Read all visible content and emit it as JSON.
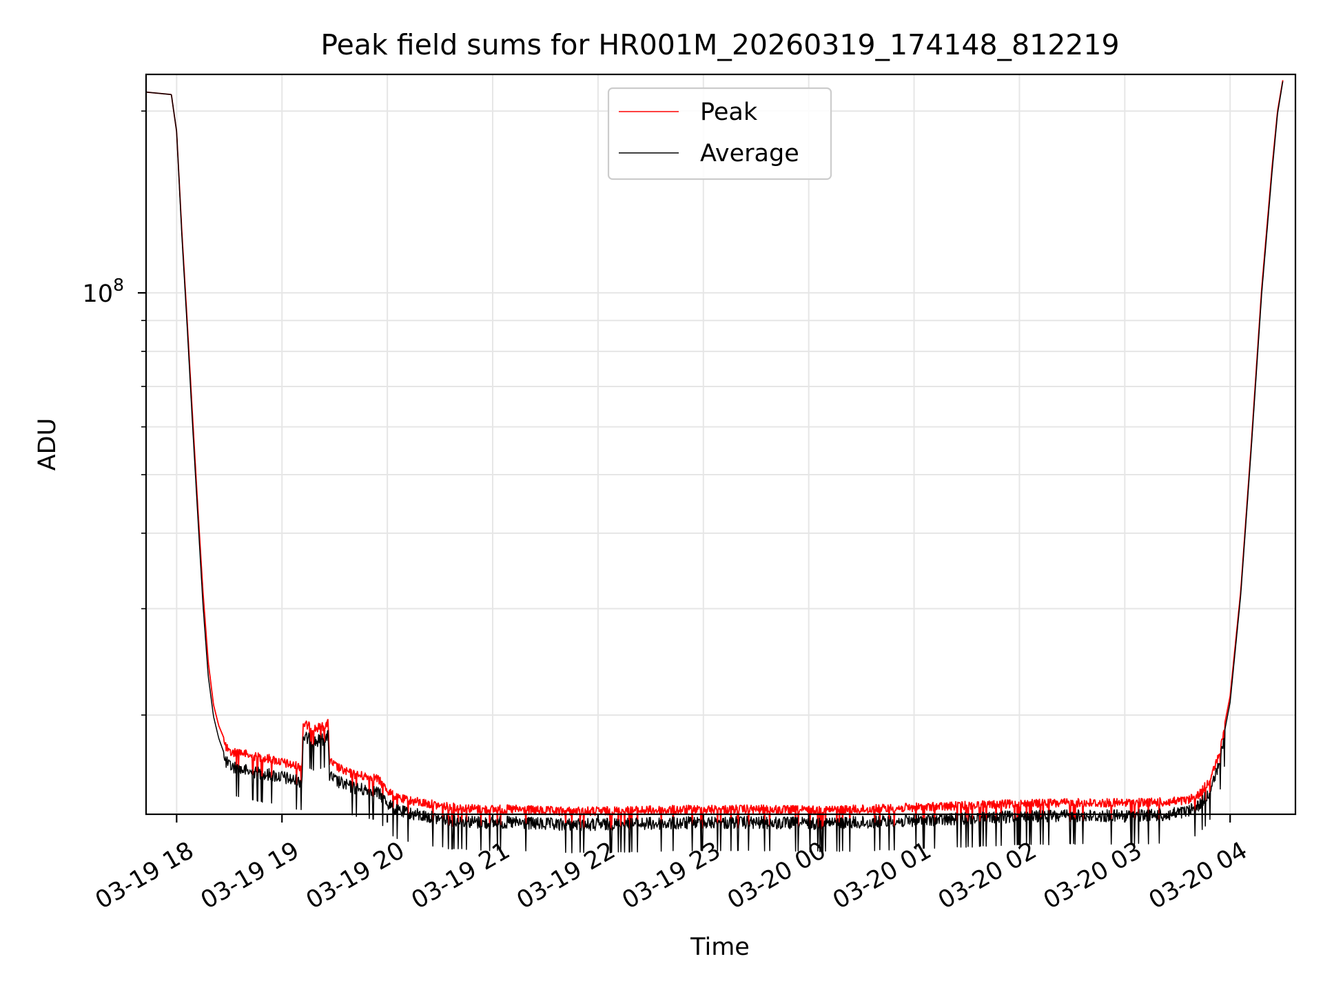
{
  "chart_data": {
    "type": "line",
    "title": "Peak field sums for HR001M_20260319_174148_812219",
    "xlabel": "Time",
    "ylabel": "ADU",
    "yscale": "log",
    "grid": true,
    "legend_position": "top-center",
    "x_unit": "hours since 03-19 17:00",
    "xlim": [
      0.71,
      11.62
    ],
    "ylim": [
      13700000.0,
      230000000.0
    ],
    "x_ticks": [
      {
        "x": 1,
        "label": "03-19 18"
      },
      {
        "x": 2,
        "label": "03-19 19"
      },
      {
        "x": 3,
        "label": "03-19 20"
      },
      {
        "x": 4,
        "label": "03-19 21"
      },
      {
        "x": 5,
        "label": "03-19 22"
      },
      {
        "x": 6,
        "label": "03-19 23"
      },
      {
        "x": 7,
        "label": "03-20 00"
      },
      {
        "x": 8,
        "label": "03-20 01"
      },
      {
        "x": 9,
        "label": "03-20 02"
      },
      {
        "x": 10,
        "label": "03-20 03"
      },
      {
        "x": 11,
        "label": "03-20 04"
      }
    ],
    "y_major_ticks": [
      {
        "value": 100000000,
        "base": "10",
        "exp": "8"
      }
    ],
    "series": [
      {
        "name": "Peak",
        "color": "#ff0000",
        "x": [
          0.71,
          0.95,
          1.0,
          1.05,
          1.1,
          1.15,
          1.2,
          1.25,
          1.3,
          1.35,
          1.4,
          1.45,
          1.5,
          1.6,
          1.7,
          1.8,
          1.9,
          2.0,
          2.1,
          2.19,
          2.2,
          2.3,
          2.4,
          2.44,
          2.45,
          2.5,
          2.6,
          2.7,
          2.8,
          2.9,
          3.0,
          3.05,
          3.1,
          3.2,
          3.3,
          3.4,
          3.5,
          3.6,
          3.7,
          3.8,
          3.9,
          4.0,
          4.2,
          4.4,
          4.6,
          4.8,
          5.0,
          5.5,
          6.0,
          6.5,
          7.0,
          7.5,
          8.0,
          8.5,
          9.0,
          9.5,
          10.0,
          10.4,
          10.6,
          10.7,
          10.8,
          10.9,
          11.0,
          11.1,
          11.2,
          11.3,
          11.4,
          11.45,
          11.5
        ],
        "y": [
          215000000,
          213000000,
          185000000,
          126000000,
          90000000,
          63000000,
          44500000,
          32000000,
          24500000,
          20800000,
          19200000,
          18300000,
          17600000,
          17700000,
          17400000,
          17300000,
          17200000,
          17000000,
          16800000,
          16700000,
          19700000,
          19300000,
          19500000,
          19700000,
          17100000,
          16800000,
          16400000,
          16200000,
          16100000,
          16000000,
          15300000,
          15000000,
          14800000,
          14700000,
          14600000,
          14500000,
          14400000,
          14300000,
          14300000,
          14250000,
          14200000,
          14200000,
          14200000,
          14150000,
          14100000,
          14100000,
          14100000,
          14150000,
          14200000,
          14200000,
          14150000,
          14200000,
          14300000,
          14400000,
          14500000,
          14550000,
          14550000,
          14600000,
          14700000,
          15000000,
          15800000,
          17500000,
          21500000,
          32000000,
          56000000,
          102000000,
          163000000,
          200000000,
          225000000
        ]
      },
      {
        "name": "Average",
        "color": "#000000",
        "x": [
          0.71,
          0.95,
          1.0,
          1.05,
          1.1,
          1.15,
          1.2,
          1.25,
          1.3,
          1.35,
          1.4,
          1.45,
          1.5,
          1.6,
          1.7,
          1.8,
          1.9,
          2.0,
          2.1,
          2.19,
          2.2,
          2.3,
          2.4,
          2.44,
          2.45,
          2.5,
          2.6,
          2.7,
          2.8,
          2.9,
          3.0,
          3.05,
          3.1,
          3.2,
          3.3,
          3.4,
          3.5,
          3.6,
          3.7,
          3.8,
          3.9,
          4.0,
          4.2,
          4.4,
          4.6,
          4.8,
          5.0,
          5.5,
          6.0,
          6.5,
          7.0,
          7.5,
          8.0,
          8.5,
          9.0,
          9.5,
          10.0,
          10.4,
          10.6,
          10.7,
          10.8,
          10.9,
          11.0,
          11.1,
          11.2,
          11.3,
          11.4,
          11.45,
          11.5
        ],
        "y": [
          215000000,
          213000000,
          185000000,
          124000000,
          88000000,
          61000000,
          43000000,
          30500000,
          23200000,
          19900000,
          18300000,
          17300000,
          16900000,
          16700000,
          16500000,
          16400000,
          16300000,
          16200000,
          16000000,
          15900000,
          18900000,
          18500000,
          18700000,
          18900000,
          16300000,
          16000000,
          15700000,
          15500000,
          15400000,
          15300000,
          14700000,
          14400000,
          14200000,
          14100000,
          14000000,
          13900000,
          13800000,
          13700000,
          13700000,
          13650000,
          13600000,
          13600000,
          13600000,
          13550000,
          13500000,
          13500000,
          13500000,
          13550000,
          13600000,
          13600000,
          13550000,
          13600000,
          13700000,
          13800000,
          13900000,
          13950000,
          13950000,
          14000000,
          14200000,
          14500000,
          15200000,
          17000000,
          21000000,
          31500000,
          55000000,
          100000000,
          160000000,
          198000000,
          224000000
        ]
      }
    ]
  }
}
